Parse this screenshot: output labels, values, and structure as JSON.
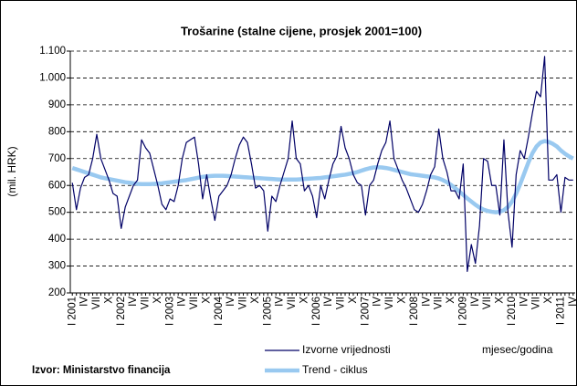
{
  "chart_data": {
    "type": "line",
    "title": "Trošarine (stalne cijene, prosjek 2001=100)",
    "y_label": "(mil. HRK)",
    "x_label": "mjesec/godina",
    "source": "Izvor: Ministarstvo financija",
    "categories": [
      "I 2001",
      null,
      null,
      "IV",
      null,
      null,
      "VII",
      null,
      null,
      "X",
      null,
      null,
      "I 2002",
      null,
      null,
      "IV",
      null,
      null,
      "VII",
      null,
      null,
      "X",
      null,
      null,
      "I 2003",
      null,
      null,
      "IV",
      null,
      null,
      "VII",
      null,
      null,
      "X",
      null,
      null,
      "I 2004",
      null,
      null,
      "IV",
      null,
      null,
      "VII",
      null,
      null,
      "X",
      null,
      null,
      "I 2005",
      null,
      null,
      "IV",
      null,
      null,
      "VII",
      null,
      null,
      "X",
      null,
      null,
      "I 2006",
      null,
      null,
      "IV",
      null,
      null,
      "VII",
      null,
      null,
      "X",
      null,
      null,
      "I 2007",
      null,
      null,
      "IV",
      null,
      null,
      "VII",
      null,
      null,
      "X",
      null,
      null,
      "I 2008",
      null,
      null,
      "IV",
      null,
      null,
      "VII",
      null,
      null,
      "X",
      null,
      null,
      "I 2009",
      null,
      null,
      "IV",
      null,
      null,
      "VII",
      null,
      null,
      "X",
      null,
      null,
      "I 2010",
      null,
      null,
      "IV",
      null,
      null,
      "VII",
      null,
      null,
      "X",
      null,
      null,
      "I 2011",
      null,
      null,
      "IV"
    ],
    "series": [
      {
        "name": "Izvorne vrijednosti",
        "color": "#000066",
        "width": 1.2,
        "values": [
          610,
          510,
          590,
          630,
          640,
          700,
          790,
          700,
          660,
          620,
          570,
          560,
          440,
          520,
          560,
          600,
          620,
          770,
          740,
          720,
          660,
          600,
          530,
          510,
          550,
          540,
          600,
          700,
          760,
          770,
          780,
          680,
          550,
          640,
          550,
          470,
          560,
          580,
          600,
          640,
          700,
          750,
          780,
          760,
          680,
          590,
          600,
          580,
          430,
          560,
          540,
          600,
          650,
          700,
          840,
          700,
          680,
          580,
          600,
          560,
          480,
          600,
          550,
          620,
          680,
          710,
          820,
          740,
          700,
          640,
          610,
          600,
          490,
          600,
          620,
          680,
          730,
          760,
          840,
          700,
          660,
          620,
          590,
          550,
          510,
          500,
          530,
          580,
          640,
          670,
          810,
          700,
          650,
          580,
          580,
          550,
          680,
          280,
          380,
          310,
          450,
          700,
          690,
          600,
          600,
          490,
          770,
          500,
          370,
          640,
          730,
          700,
          780,
          870,
          950,
          930,
          1080,
          620,
          620,
          640,
          500,
          630,
          620,
          620
        ]
      },
      {
        "name": "Trend - ciklus",
        "color": "#99c9f0",
        "width": 4.5,
        "values": [
          665,
          660,
          655,
          650,
          645,
          640,
          635,
          630,
          627,
          624,
          621,
          618,
          615,
          612,
          610,
          608,
          606,
          605,
          605,
          605,
          606,
          607,
          608,
          610,
          612,
          614,
          616,
          618,
          620,
          623,
          626,
          629,
          632,
          634,
          635,
          636,
          636,
          636,
          635,
          634,
          633,
          632,
          631,
          630,
          629,
          628,
          627,
          626,
          625,
          624,
          623,
          622,
          622,
          622,
          622,
          622,
          623,
          624,
          625,
          626,
          627,
          628,
          630,
          632,
          634,
          636,
          638,
          640,
          643,
          646,
          650,
          655,
          660,
          664,
          667,
          668,
          667,
          665,
          662,
          658,
          654,
          650,
          646,
          642,
          640,
          638,
          636,
          634,
          632,
          630,
          626,
          620,
          612,
          602,
          590,
          578,
          565,
          552,
          540,
          528,
          518,
          510,
          505,
          502,
          500,
          502,
          508,
          520,
          540,
          570,
          605,
          645,
          685,
          720,
          745,
          760,
          765,
          762,
          755,
          745,
          730,
          718,
          708,
          700
        ]
      }
    ],
    "ylim": [
      200,
      1100
    ],
    "yticks": [
      200,
      300,
      400,
      500,
      600,
      700,
      800,
      900,
      {
        "value": 1000,
        "label": "1.000"
      },
      {
        "value": 1100,
        "label": "1.100"
      }
    ],
    "grid": true
  }
}
